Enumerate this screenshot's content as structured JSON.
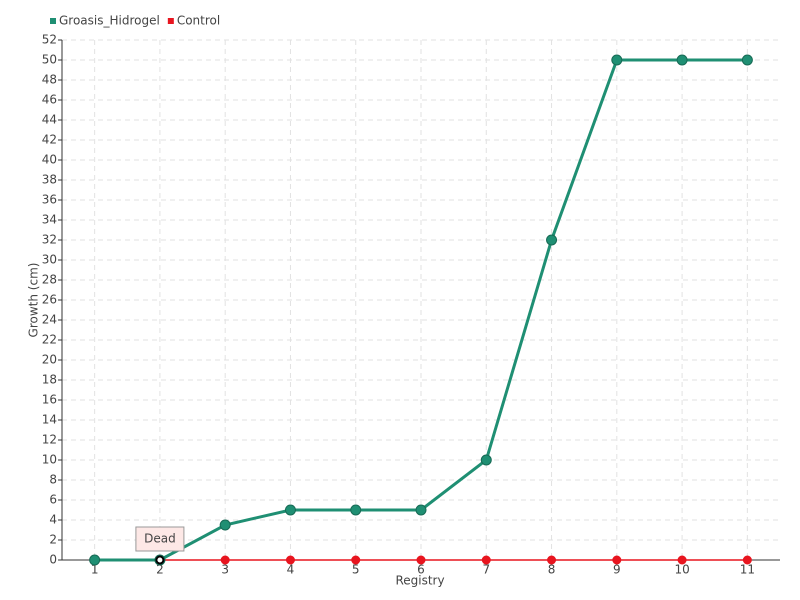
{
  "chart_data": {
    "type": "line",
    "x_label": "Registry",
    "y_label": "Growth (cm)",
    "categories": [
      "1",
      "2",
      "3",
      "4",
      "5",
      "6",
      "7",
      "8",
      "9",
      "10",
      "11"
    ],
    "series": [
      {
        "name": "Groasis_Hidrogel",
        "color": "#1f8f73",
        "values": [
          0,
          0,
          3.5,
          5,
          5,
          5,
          10,
          32,
          50,
          50,
          50
        ]
      },
      {
        "name": "Control",
        "color": "#e8151f",
        "values": [
          0,
          0,
          0,
          0,
          0,
          0,
          0,
          0,
          0,
          0,
          0
        ]
      }
    ],
    "annotations": [
      {
        "text": "Dead",
        "x": "2",
        "y": 0
      }
    ],
    "ylim": [
      0,
      52
    ],
    "yticks": [
      0,
      2,
      4,
      6,
      8,
      10,
      12,
      14,
      16,
      18,
      20,
      22,
      24,
      26,
      28,
      30,
      32,
      34,
      36,
      38,
      40,
      42,
      44,
      46,
      48,
      50,
      52
    ],
    "grid": true,
    "legend": "top-left"
  }
}
